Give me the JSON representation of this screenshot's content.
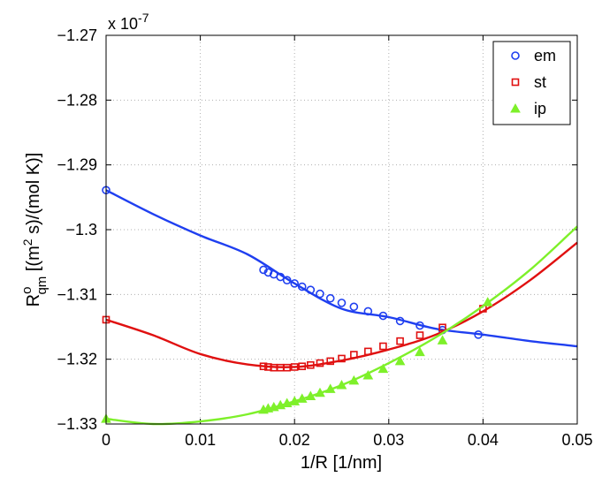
{
  "chart_data": {
    "type": "line",
    "xlabel": "1/R  [1/nm]",
    "ylabel": {
      "base": "R",
      "sup": "o",
      "sub": "qm",
      "unit_open": "  [(m",
      "unit_sup": "2",
      "unit_close": " s)/(mol K)]"
    },
    "exponent_label": "x 10",
    "exponent_power": "-7",
    "xlim": [
      0,
      0.05
    ],
    "ylim": [
      -1.33,
      -1.27
    ],
    "x_ticks": [
      0,
      0.01,
      0.02,
      0.03,
      0.04,
      0.05
    ],
    "x_tick_labels": [
      "0",
      "0.01",
      "0.02",
      "0.03",
      "0.04",
      "0.05"
    ],
    "y_ticks": [
      -1.33,
      -1.32,
      -1.31,
      -1.3,
      -1.29,
      -1.28,
      -1.27
    ],
    "y_tick_labels": [
      "−1.33",
      "−1.32",
      "−1.31",
      "−1.3",
      "−1.29",
      "−1.28",
      "−1.27"
    ],
    "grid": true,
    "legend_position": "top-right",
    "series": [
      {
        "name": "em",
        "color": "#1f3ff0",
        "marker": "circle",
        "curve_x": [
          0,
          0.005,
          0.01,
          0.015,
          0.02,
          0.025,
          0.03,
          0.035,
          0.04,
          0.045,
          0.05
        ],
        "curve_y": [
          -1.2939,
          -1.2976,
          -1.3009,
          -1.3038,
          -1.3083,
          -1.3122,
          -1.3135,
          -1.3153,
          -1.3162,
          -1.3172,
          -1.318
        ],
        "points_x": [
          0,
          0.0167,
          0.0172,
          0.0178,
          0.0185,
          0.0192,
          0.02,
          0.0208,
          0.0217,
          0.0227,
          0.0238,
          0.025,
          0.0263,
          0.0278,
          0.0294,
          0.0312,
          0.0333,
          0.0357,
          0.0395
        ],
        "points_y": [
          -1.2939,
          -1.3062,
          -1.3066,
          -1.3069,
          -1.3073,
          -1.3078,
          -1.3083,
          -1.3088,
          -1.3093,
          -1.3099,
          -1.3106,
          -1.3113,
          -1.3119,
          -1.3126,
          -1.3133,
          -1.3141,
          -1.3148,
          -1.3155,
          -1.3162
        ]
      },
      {
        "name": "st",
        "color": "#e01010",
        "marker": "square",
        "curve_x": [
          0,
          0.005,
          0.01,
          0.015,
          0.02,
          0.025,
          0.03,
          0.035,
          0.04,
          0.045,
          0.05
        ],
        "curve_y": [
          -1.3139,
          -1.3163,
          -1.3192,
          -1.3208,
          -1.3212,
          -1.3202,
          -1.3185,
          -1.3162,
          -1.3126,
          -1.3078,
          -1.302
        ],
        "points_x": [
          0,
          0.0167,
          0.0172,
          0.0178,
          0.0185,
          0.0192,
          0.02,
          0.0208,
          0.0217,
          0.0227,
          0.0238,
          0.025,
          0.0263,
          0.0278,
          0.0294,
          0.0312,
          0.0333,
          0.0357,
          0.04
        ],
        "points_y": [
          -1.3139,
          -1.3211,
          -1.3212,
          -1.3213,
          -1.3213,
          -1.3213,
          -1.3212,
          -1.3211,
          -1.3209,
          -1.3206,
          -1.3203,
          -1.3199,
          -1.3193,
          -1.3188,
          -1.318,
          -1.3172,
          -1.3163,
          -1.3151,
          -1.3122
        ]
      },
      {
        "name": "ip",
        "color": "#7ef02a",
        "marker": "triangle",
        "curve_x": [
          0,
          0.005,
          0.01,
          0.015,
          0.02,
          0.025,
          0.03,
          0.035,
          0.04,
          0.045,
          0.05
        ],
        "curve_y": [
          -1.3292,
          -1.33,
          -1.3296,
          -1.3285,
          -1.3265,
          -1.324,
          -1.3206,
          -1.3166,
          -1.3118,
          -1.3062,
          -1.2995
        ],
        "points_x": [
          0,
          0.0167,
          0.0172,
          0.0178,
          0.0185,
          0.0192,
          0.02,
          0.0208,
          0.0217,
          0.0227,
          0.0238,
          0.025,
          0.0263,
          0.0278,
          0.0294,
          0.0312,
          0.0333,
          0.0357,
          0.0405
        ],
        "points_y": [
          -1.3292,
          -1.3278,
          -1.3276,
          -1.3274,
          -1.3271,
          -1.3268,
          -1.3265,
          -1.3261,
          -1.3257,
          -1.3252,
          -1.3246,
          -1.324,
          -1.3233,
          -1.3225,
          -1.3215,
          -1.3203,
          -1.3189,
          -1.3171,
          -1.3112
        ]
      }
    ]
  }
}
